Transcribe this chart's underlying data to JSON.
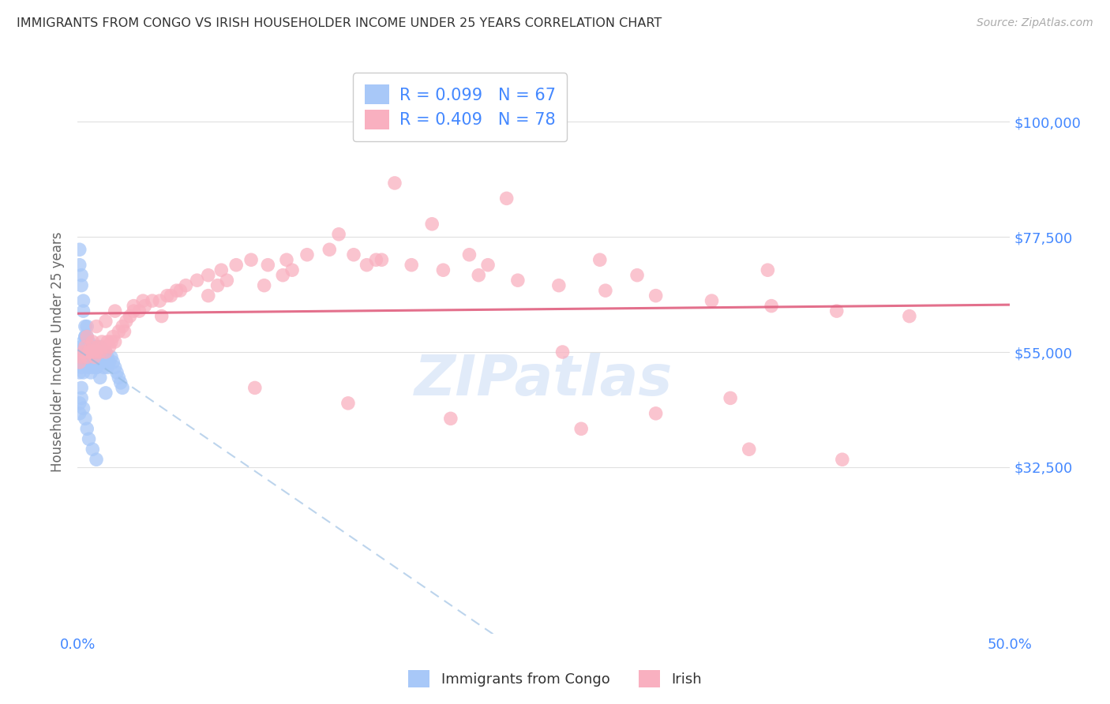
{
  "title": "IMMIGRANTS FROM CONGO VS IRISH HOUSEHOLDER INCOME UNDER 25 YEARS CORRELATION CHART",
  "source": "Source: ZipAtlas.com",
  "ylabel": "Householder Income Under 25 years",
  "xlim": [
    0.0,
    0.5
  ],
  "ylim": [
    0,
    110000
  ],
  "yticks": [
    32500,
    55000,
    77500,
    100000
  ],
  "ytick_labels": [
    "$32,500",
    "$55,000",
    "$77,500",
    "$100,000"
  ],
  "xticks": [
    0.0,
    0.1,
    0.2,
    0.3,
    0.4,
    0.5
  ],
  "xtick_labels": [
    "0.0%",
    "",
    "",
    "",
    "",
    "50.0%"
  ],
  "congo_R": 0.099,
  "congo_N": 67,
  "irish_R": 0.409,
  "irish_N": 78,
  "congo_color": "#a8c8f8",
  "irish_color": "#f9b0c0",
  "congo_line_color": "#90b8e0",
  "irish_line_color": "#e06080",
  "legend_label_congo": "Immigrants from Congo",
  "legend_label_irish": "Irish",
  "watermark": "ZIPatlas",
  "background_color": "#ffffff",
  "grid_color": "#e0e0e0",
  "title_color": "#333333",
  "axis_label_color": "#666666",
  "tick_color": "#4488ff",
  "legend_text_color": "#4488ff",
  "congo_scatter_x": [
    0.001,
    0.001,
    0.001,
    0.002,
    0.002,
    0.002,
    0.003,
    0.003,
    0.003,
    0.003,
    0.004,
    0.004,
    0.004,
    0.005,
    0.005,
    0.005,
    0.006,
    0.006,
    0.006,
    0.007,
    0.007,
    0.007,
    0.008,
    0.008,
    0.008,
    0.009,
    0.009,
    0.01,
    0.01,
    0.01,
    0.011,
    0.011,
    0.012,
    0.012,
    0.013,
    0.013,
    0.014,
    0.014,
    0.015,
    0.015,
    0.016,
    0.016,
    0.017,
    0.018,
    0.019,
    0.02,
    0.021,
    0.022,
    0.023,
    0.024,
    0.001,
    0.001,
    0.002,
    0.002,
    0.003,
    0.003,
    0.004,
    0.004,
    0.005,
    0.005,
    0.006,
    0.007,
    0.008,
    0.009,
    0.01,
    0.012,
    0.015
  ],
  "congo_scatter_y": [
    55000,
    53000,
    51000,
    56000,
    54000,
    52000,
    57000,
    55000,
    53000,
    51000,
    58000,
    56000,
    54000,
    57000,
    55000,
    53000,
    56000,
    54000,
    52000,
    55000,
    53000,
    51000,
    56000,
    54000,
    52000,
    55000,
    53000,
    56000,
    54000,
    52000,
    55000,
    53000,
    56000,
    54000,
    55000,
    53000,
    54000,
    52000,
    55000,
    53000,
    54000,
    52000,
    53000,
    54000,
    53000,
    52000,
    51000,
    50000,
    49000,
    48000,
    75000,
    72000,
    70000,
    68000,
    65000,
    63000,
    60000,
    58000,
    60000,
    58000,
    57000,
    55000,
    54000,
    53000,
    52000,
    50000,
    47000
  ],
  "irish_scatter_x": [
    0.001,
    0.002,
    0.003,
    0.004,
    0.005,
    0.006,
    0.007,
    0.008,
    0.009,
    0.01,
    0.011,
    0.012,
    0.013,
    0.014,
    0.015,
    0.016,
    0.017,
    0.018,
    0.019,
    0.02,
    0.022,
    0.024,
    0.026,
    0.028,
    0.03,
    0.033,
    0.036,
    0.04,
    0.044,
    0.048,
    0.053,
    0.058,
    0.064,
    0.07,
    0.077,
    0.085,
    0.093,
    0.102,
    0.112,
    0.123,
    0.135,
    0.148,
    0.163,
    0.179,
    0.196,
    0.215,
    0.236,
    0.258,
    0.283,
    0.31,
    0.34,
    0.372,
    0.407,
    0.446,
    0.005,
    0.01,
    0.02,
    0.035,
    0.055,
    0.08,
    0.115,
    0.16,
    0.22,
    0.3,
    0.008,
    0.015,
    0.03,
    0.05,
    0.075,
    0.11,
    0.155,
    0.21,
    0.28,
    0.37,
    0.025,
    0.045,
    0.07,
    0.1,
    0.14,
    0.19,
    0.26,
    0.35
  ],
  "irish_scatter_y": [
    53000,
    54000,
    55000,
    56000,
    54000,
    55000,
    56000,
    55000,
    54000,
    55000,
    56000,
    55000,
    57000,
    56000,
    55000,
    57000,
    56000,
    57000,
    58000,
    57000,
    59000,
    60000,
    61000,
    62000,
    63000,
    63000,
    64000,
    65000,
    65000,
    66000,
    67000,
    68000,
    69000,
    70000,
    71000,
    72000,
    73000,
    72000,
    73000,
    74000,
    75000,
    74000,
    73000,
    72000,
    71000,
    70000,
    69000,
    68000,
    67000,
    66000,
    65000,
    64000,
    63000,
    62000,
    58000,
    60000,
    63000,
    65000,
    67000,
    69000,
    71000,
    73000,
    72000,
    70000,
    57000,
    61000,
    64000,
    66000,
    68000,
    70000,
    72000,
    74000,
    73000,
    71000,
    59000,
    62000,
    66000,
    68000,
    78000,
    80000,
    55000,
    46000
  ],
  "irish_extra_x": [
    0.17,
    0.23,
    0.31,
    0.41,
    0.095,
    0.145,
    0.2,
    0.27,
    0.36
  ],
  "irish_extra_y": [
    88000,
    85000,
    43000,
    34000,
    48000,
    45000,
    42000,
    40000,
    36000
  ],
  "congo_extra_x": [
    0.001,
    0.001,
    0.002,
    0.002,
    0.003,
    0.004,
    0.005,
    0.006,
    0.008,
    0.01
  ],
  "congo_extra_y": [
    45000,
    43000,
    48000,
    46000,
    44000,
    42000,
    40000,
    38000,
    36000,
    34000
  ]
}
